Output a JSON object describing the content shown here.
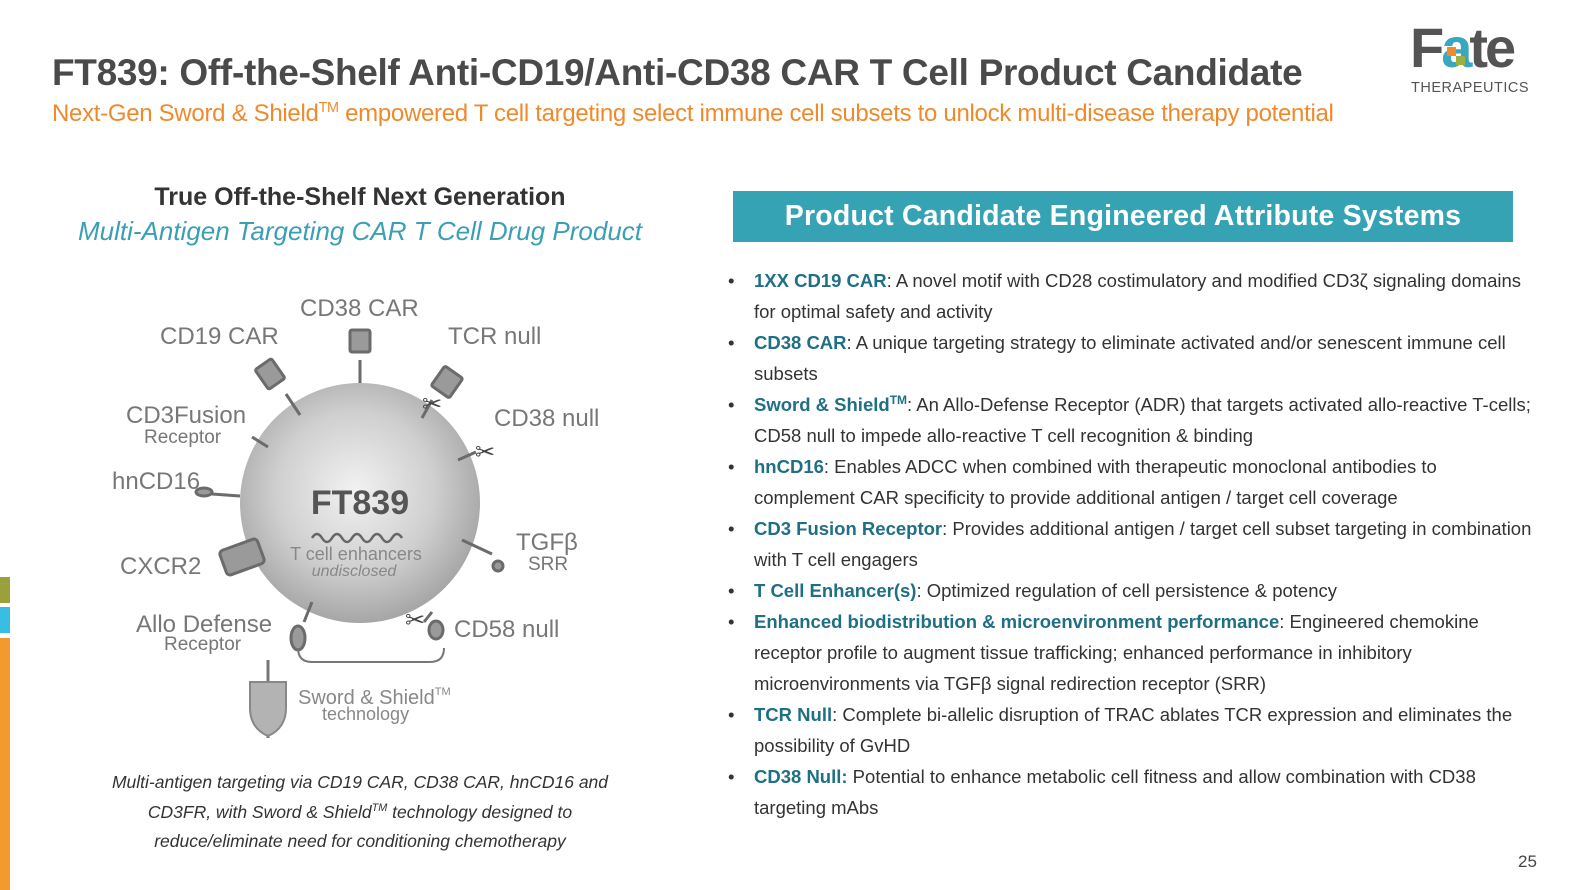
{
  "header": {
    "title": "FT839: Off-the-Shelf Anti-CD19/Anti-CD38 CAR T Cell Product Candidate",
    "subtitle_pre": "Next-Gen Sword & Shield",
    "subtitle_tm": "TM",
    "subtitle_post": " empowered T cell targeting select immune cell subsets to unlock multi-disease therapy potential"
  },
  "logo": {
    "word": "Fate",
    "sub": "THERAPEUTICS",
    "colors": [
      "#545454",
      "#3aa7c1",
      "#f08a2c",
      "#9ab040"
    ]
  },
  "left": {
    "heading": "True Off-the-Shelf Next Generation",
    "subheading": "Multi-Antigen Targeting CAR T Cell Drug Product",
    "diagram": {
      "center_name": "FT839",
      "center_line1": "T cell enhancers",
      "center_line2": "undisclosed",
      "labels": {
        "cd38_car": "CD38 CAR",
        "cd19_car": "CD19 CAR",
        "tcr_null": "TCR null",
        "cd3fusion": "CD3Fusion",
        "cd3fusion_sub": "Receptor",
        "cd38_null": "CD38 null",
        "hncd16": "hnCD16",
        "tgfb": "TGFβ",
        "tgfb_sub": "SRR",
        "cxcr2": "CXCR2",
        "allo": "Allo Defense",
        "allo_sub": "Receptor",
        "cd58_null": "CD58 null",
        "sword": "Sword & Shield",
        "sword_tm": "TM",
        "sword_sub": "technology"
      }
    },
    "caption_1": "Multi-antigen targeting via CD19 CAR, CD38 CAR, hnCD16 and",
    "caption_2a": "CD3FR, with Sword & Shield",
    "caption_tm": "TM",
    "caption_2b": " technology designed to",
    "caption_3": "reduce/eliminate need for conditioning chemotherapy"
  },
  "panel": {
    "heading": "Product Candidate Engineered Attribute Systems",
    "bullets": [
      {
        "term": "1XX CD19 CAR",
        "text": ": A novel motif with CD28 costimulatory and modified CD3ζ signaling domains for optimal safety and activity"
      },
      {
        "term": "CD38 CAR",
        "text": ": A unique targeting strategy to eliminate activated and/or senescent immune cell subsets"
      },
      {
        "term": "Sword & Shield",
        "tm": "TM",
        "text": ": An Allo-Defense Receptor (ADR) that targets activated allo-reactive T-cells; CD58 null to impede allo-reactive T cell recognition & binding"
      },
      {
        "term": "hnCD16",
        "text": ": Enables ADCC when combined with therapeutic monoclonal antibodies to complement CAR specificity to provide additional antigen / target cell coverage"
      },
      {
        "term": "CD3 Fusion Receptor",
        "text": ": Provides additional antigen / target cell subset targeting in combination with T cell engagers"
      },
      {
        "term": "T Cell Enhancer(s)",
        "text": ": Optimized regulation of cell persistence & potency"
      },
      {
        "term": "Enhanced biodistribution & microenvironment performance",
        "text": ": Engineered chemokine receptor profile to augment tissue trafficking; enhanced performance in inhibitory microenvironments via TGFβ signal redirection receptor (SRR)"
      },
      {
        "term": "TCR Null",
        "text": ": Complete bi-allelic disruption of TRAC ablates TCR expression and eliminates the possibility of GvHD"
      },
      {
        "term": "CD38 Null:",
        "text": " Potential to enhance metabolic cell fitness and allow combination with CD38 targeting mAbs"
      }
    ]
  },
  "page_number": "25",
  "colors": {
    "accent_teal": "#36a3b5",
    "accent_orange": "#ef8a2c",
    "term_teal": "#1f6f85"
  }
}
